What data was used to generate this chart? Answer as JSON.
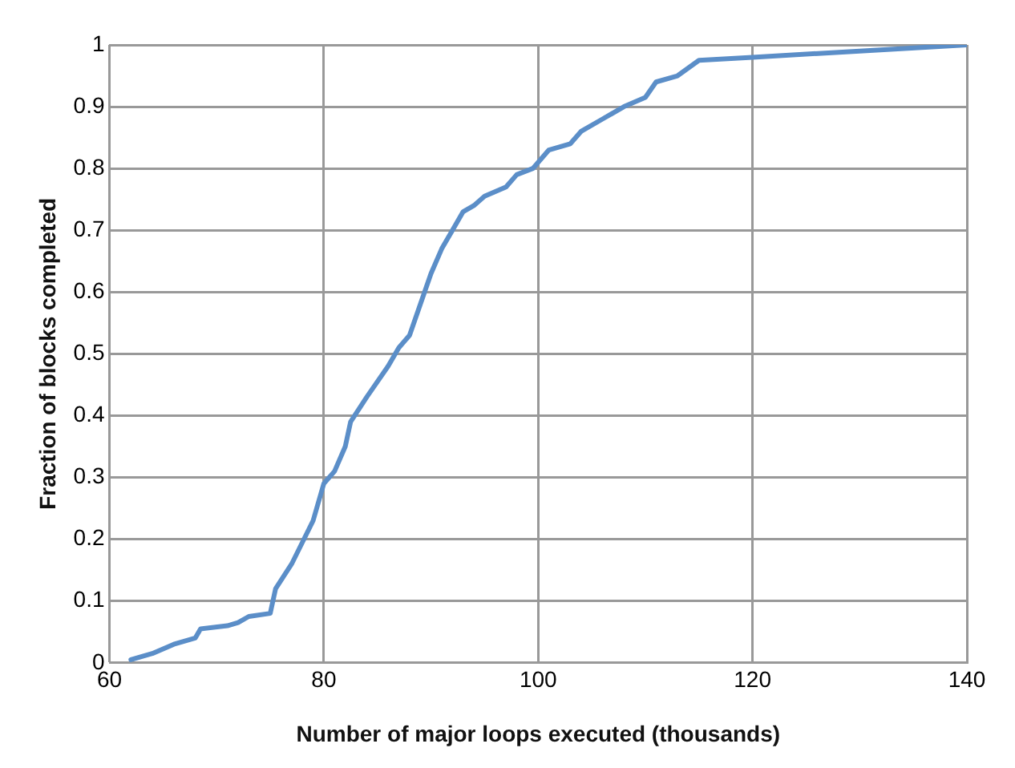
{
  "chart_data": {
    "type": "line",
    "xlabel": "Number of major loops executed (thousands)",
    "ylabel": "Fraction of blocks completed",
    "xlim": [
      60,
      140
    ],
    "xticks": [
      60,
      80,
      100,
      120,
      140
    ],
    "ylim": [
      0,
      1
    ],
    "yticks": [
      0,
      0.1,
      0.2,
      0.3,
      0.4,
      0.5,
      0.6,
      0.7,
      0.8,
      0.9,
      1
    ],
    "grid": true,
    "legend": false,
    "marker": "none",
    "line_style": "solid",
    "series": [
      {
        "color": "#5b8ec8",
        "x": [
          62,
          64,
          66,
          68,
          68.5,
          71,
          72,
          73,
          75,
          75.5,
          77,
          79,
          80,
          81,
          82,
          82.5,
          84,
          86,
          87,
          88,
          89,
          90,
          91,
          92,
          93,
          94,
          95,
          97,
          98,
          99.5,
          101,
          103,
          104,
          106,
          108,
          110,
          111,
          113,
          115,
          120,
          130,
          140
        ],
        "values": [
          0.005,
          0.015,
          0.03,
          0.04,
          0.055,
          0.06,
          0.065,
          0.075,
          0.08,
          0.12,
          0.16,
          0.23,
          0.29,
          0.31,
          0.35,
          0.39,
          0.43,
          0.48,
          0.51,
          0.53,
          0.58,
          0.63,
          0.67,
          0.7,
          0.73,
          0.74,
          0.755,
          0.77,
          0.79,
          0.8,
          0.83,
          0.84,
          0.86,
          0.88,
          0.9,
          0.915,
          0.94,
          0.95,
          0.975,
          0.98,
          0.99,
          1
        ]
      }
    ]
  }
}
